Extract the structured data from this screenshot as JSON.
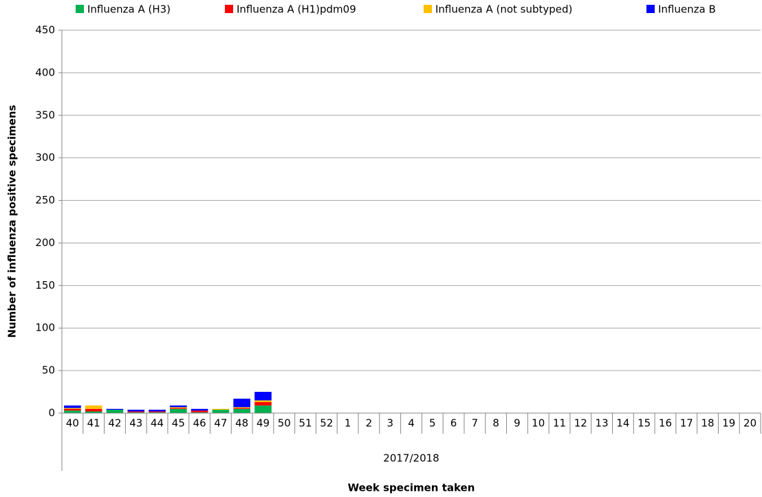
{
  "chart_data": {
    "type": "bar",
    "stacked": true,
    "y_label": "Number of influenza positive specimens",
    "x_label": "Week specimen taken",
    "x_group_label": "2017/2018",
    "categories": [
      "40",
      "41",
      "42",
      "43",
      "44",
      "45",
      "46",
      "47",
      "48",
      "49",
      "50",
      "51",
      "52",
      "1",
      "2",
      "3",
      "4",
      "5",
      "6",
      "7",
      "8",
      "9",
      "10",
      "11",
      "12",
      "13",
      "14",
      "15",
      "16",
      "17",
      "18",
      "19",
      "20"
    ],
    "series": [
      {
        "name": "Influenza A (H3)",
        "color": "#00b050",
        "values": [
          3,
          2,
          4,
          1,
          1,
          5,
          1,
          4,
          5,
          9,
          null,
          null,
          null,
          null,
          null,
          null,
          null,
          null,
          null,
          null,
          null,
          null,
          null,
          null,
          null,
          null,
          null,
          null,
          null,
          null,
          null,
          null,
          null
        ]
      },
      {
        "name": "Influenza A (H1)pdm09",
        "color": "#ff0000",
        "values": [
          2,
          3,
          0,
          1,
          1,
          1,
          2,
          0,
          1,
          4,
          null,
          null,
          null,
          null,
          null,
          null,
          null,
          null,
          null,
          null,
          null,
          null,
          null,
          null,
          null,
          null,
          null,
          null,
          null,
          null,
          null,
          null,
          null
        ]
      },
      {
        "name": "Influenza A (not subtyped)",
        "color": "#ffc000",
        "values": [
          1,
          4,
          0,
          0,
          0,
          1,
          0,
          1,
          1,
          2,
          null,
          null,
          null,
          null,
          null,
          null,
          null,
          null,
          null,
          null,
          null,
          null,
          null,
          null,
          null,
          null,
          null,
          null,
          null,
          null,
          null,
          null,
          null
        ]
      },
      {
        "name": "Influenza B",
        "color": "#0000ff",
        "values": [
          3,
          0,
          1,
          2,
          2,
          2,
          2,
          0,
          10,
          10,
          null,
          null,
          null,
          null,
          null,
          null,
          null,
          null,
          null,
          null,
          null,
          null,
          null,
          null,
          null,
          null,
          null,
          null,
          null,
          null,
          null,
          null,
          null
        ]
      }
    ],
    "ylim": [
      0,
      450
    ],
    "yticks": [
      0,
      50,
      100,
      150,
      200,
      250,
      300,
      350,
      400,
      450
    ],
    "grid": true,
    "legend": "top"
  }
}
